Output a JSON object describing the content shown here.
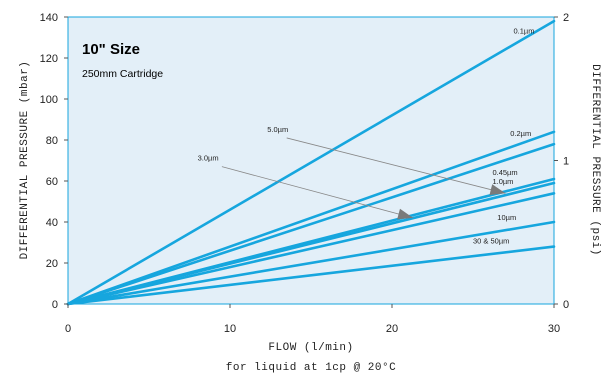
{
  "chart_data": {
    "type": "line",
    "title": "10\" Size",
    "subtitle": "250mm Cartridge",
    "xlabel": "FLOW (l/min)",
    "xlabel_note": "for liquid at 1cp @ 20°C",
    "ylabel": "DIFFERENTIAL PRESSURE (mbar)",
    "y2label": "DIFFERENTIAL PRESSURE (psi)",
    "xlim": [
      0,
      30
    ],
    "ylim": [
      0,
      140
    ],
    "y2lim": [
      0,
      2
    ],
    "x_ticks": [
      0,
      10,
      20,
      30
    ],
    "y_ticks": [
      0,
      20,
      40,
      60,
      80,
      100,
      120,
      140
    ],
    "y2_ticks": [
      0,
      1,
      2
    ],
    "grid": false,
    "series": [
      {
        "name": "0.1µm",
        "x": [
          0,
          30
        ],
        "y": [
          0,
          138
        ],
        "label_at": [
          27.5,
          132
        ]
      },
      {
        "name": "0.2µm",
        "x": [
          0,
          30
        ],
        "y": [
          0,
          84
        ],
        "label_at": [
          27.3,
          82
        ]
      },
      {
        "name": "",
        "x": [
          0,
          30
        ],
        "y": [
          0,
          78
        ]
      },
      {
        "name": "0.45µm",
        "x": [
          0,
          30
        ],
        "y": [
          0,
          61
        ],
        "label_at": [
          26.2,
          63
        ]
      },
      {
        "name": "1.0µm",
        "x": [
          0,
          30
        ],
        "y": [
          0,
          59
        ],
        "label_at": [
          26.2,
          58.5
        ]
      },
      {
        "name": "",
        "x": [
          0,
          30
        ],
        "y": [
          0,
          54
        ]
      },
      {
        "name": "10µm",
        "x": [
          0,
          30
        ],
        "y": [
          0,
          40
        ],
        "label_at": [
          26.5,
          41
        ]
      },
      {
        "name": "30 & 50µm",
        "x": [
          0,
          30
        ],
        "y": [
          0,
          28
        ],
        "label_at": [
          25.0,
          29.5
        ]
      }
    ],
    "annotations": [
      {
        "text": "5.0µm",
        "text_at": [
          12.3,
          84
        ],
        "from": [
          13.5,
          81
        ],
        "to": [
          27.0,
          54
        ]
      },
      {
        "text": "3.0µm",
        "text_at": [
          8.0,
          70
        ],
        "from": [
          9.5,
          67
        ],
        "to": [
          21.3,
          42
        ]
      }
    ],
    "colors": {
      "plot_background": "#e3eff8",
      "series_line": "#16a6de",
      "annotation_line": "#888888",
      "annotation_arrow": "#7a7a7a",
      "frame": "#16a6de"
    }
  }
}
